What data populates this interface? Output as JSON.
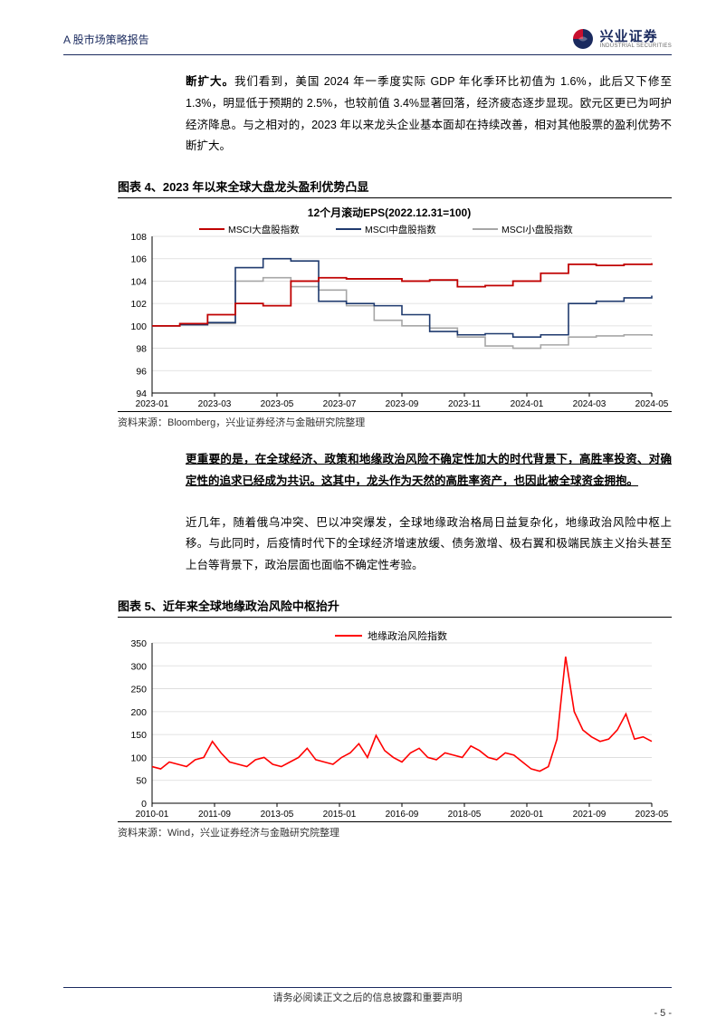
{
  "header": {
    "left": "A 股市场策略报告",
    "logo_cn": "兴业证券",
    "logo_en": "INDUSTRIAL SECURITIES"
  },
  "para1_bold": "断扩大。",
  "para1_rest": "我们看到，美国 2024 年一季度实际 GDP 年化季环比初值为 1.6%，此后又下修至 1.3%，明显低于预期的 2.5%，也较前值 3.4%显著回落，经济疲态逐步显现。欧元区更已为呵护经济降息。与之相对的，2023 年以来龙头企业基本面却在持续改善，相对其他股票的盈利优势不断扩大。",
  "chart4": {
    "title": "图表 4、2023 年以来全球大盘龙头盈利优势凸显",
    "subtitle": "12个月滚动EPS(2022.12.31=100)",
    "legend": [
      "MSCI大盘股指数",
      "MSCI中盘股指数",
      "MSCI小盘股指数"
    ],
    "colors": [
      "#c00000",
      "#1f3a6e",
      "#a6a6a6"
    ],
    "ylim": [
      94,
      108
    ],
    "ytick_step": 2,
    "background_color": "#ffffff",
    "grid_color": "#d9d9d9",
    "axis_color": "#000000",
    "x_labels": [
      "2023-01",
      "2023-03",
      "2023-05",
      "2023-07",
      "2023-09",
      "2023-11",
      "2024-01",
      "2024-03",
      "2024-05"
    ],
    "series_large": [
      100,
      100.2,
      101,
      102,
      101.8,
      104,
      104.3,
      104.2,
      104.2,
      104,
      104.1,
      103.5,
      103.6,
      104,
      104.7,
      105.5,
      105.4,
      105.5,
      105.6
    ],
    "series_mid": [
      100,
      100.1,
      100.3,
      105.2,
      106,
      105.8,
      102.2,
      102,
      101.8,
      101,
      99.5,
      99.2,
      99.3,
      99,
      99.2,
      102,
      102.2,
      102.5,
      102.7
    ],
    "series_small": [
      100,
      100.1,
      100.2,
      104,
      104.3,
      103.5,
      103.2,
      101.8,
      100.5,
      100,
      99.8,
      99,
      98.2,
      98,
      98.3,
      99,
      99.1,
      99.2,
      99.1
    ],
    "source": "资料来源：Bloomberg，兴业证券经济与金融研究院整理"
  },
  "para2": "更重要的是，在全球经济、政策和地缘政治风险不确定性加大的时代背景下，高胜率投资、对确定性的追求已经成为共识。这其中，龙头作为天然的高胜率资产，也因此被全球资金拥抱。",
  "para3": "近几年，随着俄乌冲突、巴以冲突爆发，全球地缘政治格局日益复杂化，地缘政治风险中枢上移。与此同时，后疫情时代下的全球经济增速放缓、债务激增、极右翼和极端民族主义抬头甚至上台等背景下，政治层面也面临不确定性考验。",
  "chart5": {
    "title": "图表 5、近年来全球地缘政治风险中枢抬升",
    "legend": [
      "地缘政治风险指数"
    ],
    "colors": [
      "#ff0000"
    ],
    "ylim": [
      0,
      350
    ],
    "ytick_step": 50,
    "background_color": "#ffffff",
    "grid_color": "#d9d9d9",
    "axis_color": "#000000",
    "x_labels": [
      "2010-01",
      "2011-09",
      "2013-05",
      "2015-01",
      "2016-09",
      "2018-05",
      "2020-01",
      "2021-09",
      "2023-05"
    ],
    "values": [
      80,
      75,
      90,
      85,
      80,
      95,
      100,
      135,
      110,
      90,
      85,
      80,
      95,
      100,
      85,
      80,
      90,
      100,
      120,
      95,
      90,
      85,
      100,
      110,
      130,
      100,
      148,
      115,
      100,
      90,
      110,
      120,
      100,
      95,
      110,
      105,
      100,
      125,
      115,
      100,
      95,
      110,
      105,
      90,
      75,
      70,
      80,
      140,
      320,
      200,
      160,
      145,
      135,
      140,
      160,
      195,
      140,
      145,
      135
    ],
    "source": "资料来源：Wind，兴业证券经济与金融研究院整理"
  },
  "footer": {
    "text": "请务必阅读正文之后的信息披露和重要声明",
    "page": "- 5 -"
  },
  "logo_colors": {
    "red": "#c8102e",
    "blue": "#1a2a5e"
  }
}
